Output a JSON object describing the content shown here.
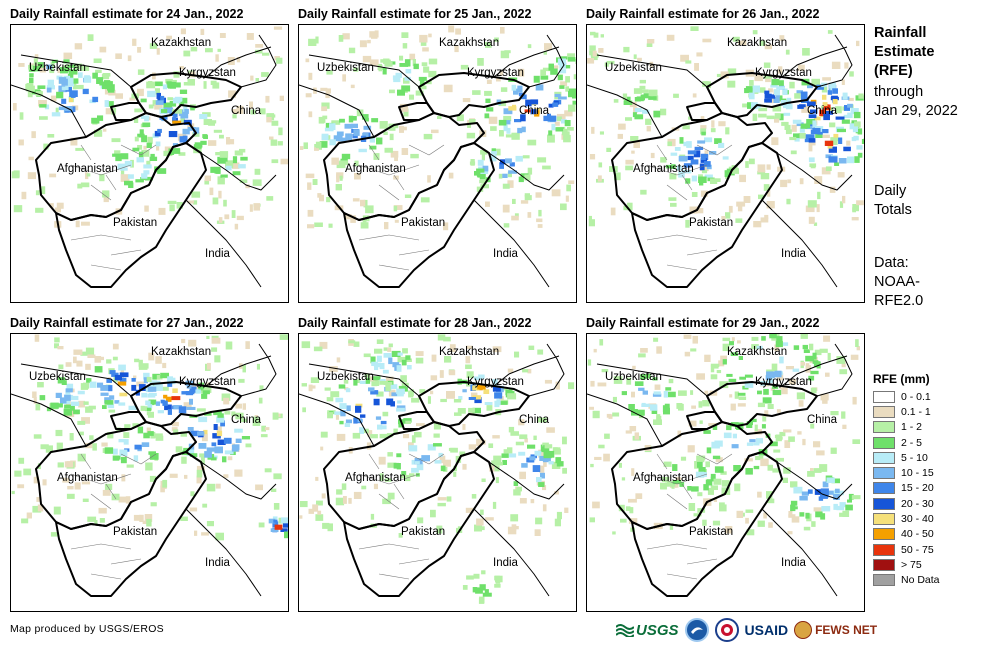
{
  "panels": [
    {
      "title": "Daily Rainfall estimate for 24 Jan., 2022",
      "intensity": "moderate-north"
    },
    {
      "title": "Daily Rainfall estimate for 25 Jan., 2022",
      "intensity": "heavy-east"
    },
    {
      "title": "Daily Rainfall estimate for 26 Jan., 2022",
      "intensity": "heavy-china"
    },
    {
      "title": "Daily Rainfall estimate for 27 Jan., 2022",
      "intensity": "heavy-kyrgyzstan"
    },
    {
      "title": "Daily Rainfall estimate for 28 Jan., 2022",
      "intensity": "heavy-uzbekistan"
    },
    {
      "title": "Daily Rainfall estimate for 29 Jan., 2022",
      "intensity": "light-widespread"
    }
  ],
  "map_labels": {
    "kazakhstan": "Kazakhstan",
    "uzbekistan": "Uzbekistan",
    "kyrgyzstan": "Kyrgyzstan",
    "china": "China",
    "afghanistan": "Afghanistan",
    "pakistan": "Pakistan",
    "india": "India"
  },
  "side_text": {
    "title_line1": "Rainfall",
    "title_line2": "Estimate",
    "title_line3": "(RFE)",
    "through_line1": "through",
    "through_line2": "Jan 29, 2022",
    "daily_line1": "Daily",
    "daily_line2": "Totals",
    "data_line1": "Data:",
    "data_line2": "NOAA-",
    "data_line3": "RFE2.0"
  },
  "legend": {
    "title": "RFE (mm)",
    "items": [
      {
        "label": "0 - 0.1",
        "color": "#ffffff"
      },
      {
        "label": "0.1 - 1",
        "color": "#eadcc0"
      },
      {
        "label": "1 - 2",
        "color": "#b6f0a6"
      },
      {
        "label": "2 - 5",
        "color": "#6fe06a"
      },
      {
        "label": "5 - 10",
        "color": "#b8ecf7"
      },
      {
        "label": "10 - 15",
        "color": "#7ab8f0"
      },
      {
        "label": "15 - 20",
        "color": "#3f86ea"
      },
      {
        "label": "20 - 30",
        "color": "#1655d8"
      },
      {
        "label": "30 - 40",
        "color": "#f5e07a"
      },
      {
        "label": "40 - 50",
        "color": "#f5a000"
      },
      {
        "label": "50 - 75",
        "color": "#e8340c"
      },
      {
        "label": "> 75",
        "color": "#a01010"
      },
      {
        "label": "No Data",
        "color": "#a0a0a0"
      }
    ]
  },
  "footer": {
    "credit": "Map produced by USGS/EROS"
  },
  "logos": {
    "usgs": "USGS",
    "usaid": "USAID",
    "fews": "FEWS NET"
  }
}
